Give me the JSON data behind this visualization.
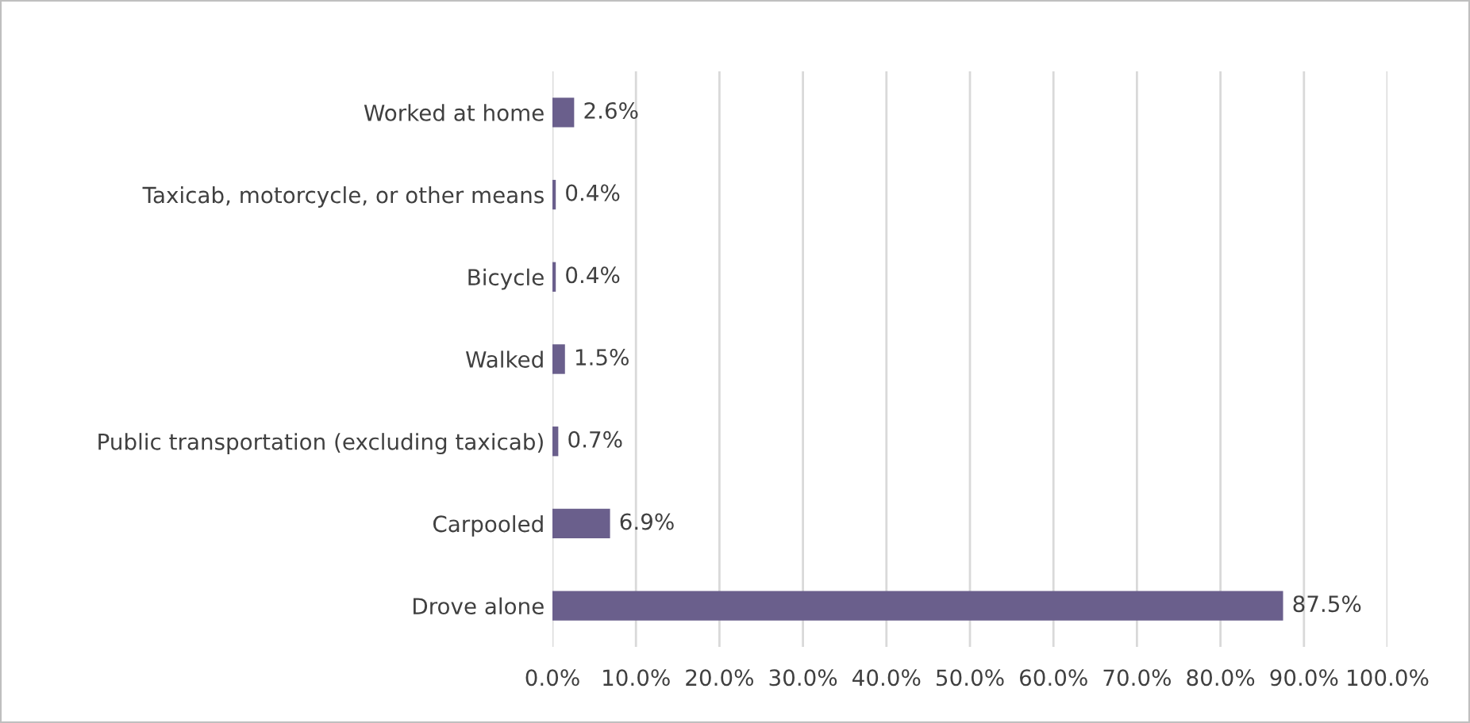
{
  "chart_data": {
    "type": "bar",
    "orientation": "horizontal",
    "categories": [
      "Worked at home",
      "Taxicab, motorcycle, or other means",
      "Bicycle",
      "Walked",
      "Public transportation (excluding taxicab)",
      "Carpooled",
      "Drove alone"
    ],
    "values": [
      2.6,
      0.4,
      0.4,
      1.5,
      0.7,
      6.9,
      87.5
    ],
    "value_labels": [
      "2.6%",
      "0.4%",
      "0.4%",
      "1.5%",
      "0.7%",
      "6.9%",
      "87.5%"
    ],
    "color": "#6a5f8c",
    "xlim": [
      0,
      100
    ],
    "xticks": [
      {
        "value": 0,
        "label": "0.0%"
      },
      {
        "value": 10,
        "label": "10.0%"
      },
      {
        "value": 20,
        "label": "20.0%"
      },
      {
        "value": 30,
        "label": "30.0%"
      },
      {
        "value": 40,
        "label": "40.0%"
      },
      {
        "value": 50,
        "label": "50.0%"
      },
      {
        "value": 60,
        "label": "60.0%"
      },
      {
        "value": 70,
        "label": "70.0%"
      },
      {
        "value": 80,
        "label": "80.0%"
      },
      {
        "value": 90,
        "label": "90.0%"
      },
      {
        "value": 100,
        "label": "100.0%"
      }
    ],
    "grid": "x"
  }
}
